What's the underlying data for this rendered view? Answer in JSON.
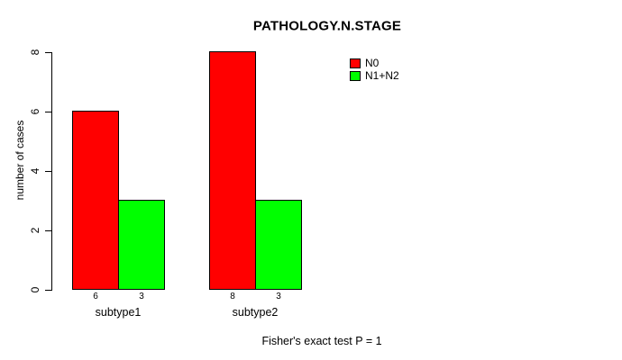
{
  "chart_data": {
    "type": "bar",
    "title": "PATHOLOGY.N.STAGE",
    "ylabel": "number of cases",
    "xlabel": "",
    "categories": [
      "subtype1",
      "subtype2"
    ],
    "series": [
      {
        "name": "N0",
        "color": "#FF0000",
        "values": [
          6,
          8
        ]
      },
      {
        "name": "N1+N2",
        "color": "#00FF00",
        "values": [
          3,
          3
        ]
      }
    ],
    "yticks": [
      "0",
      "2",
      "4",
      "6",
      "8"
    ],
    "ylim": [
      0,
      8
    ],
    "grid": false,
    "legend_position": "top-right-inside",
    "bar_borders": "#000000",
    "annotation": "Fisher's exact test P = 1"
  }
}
